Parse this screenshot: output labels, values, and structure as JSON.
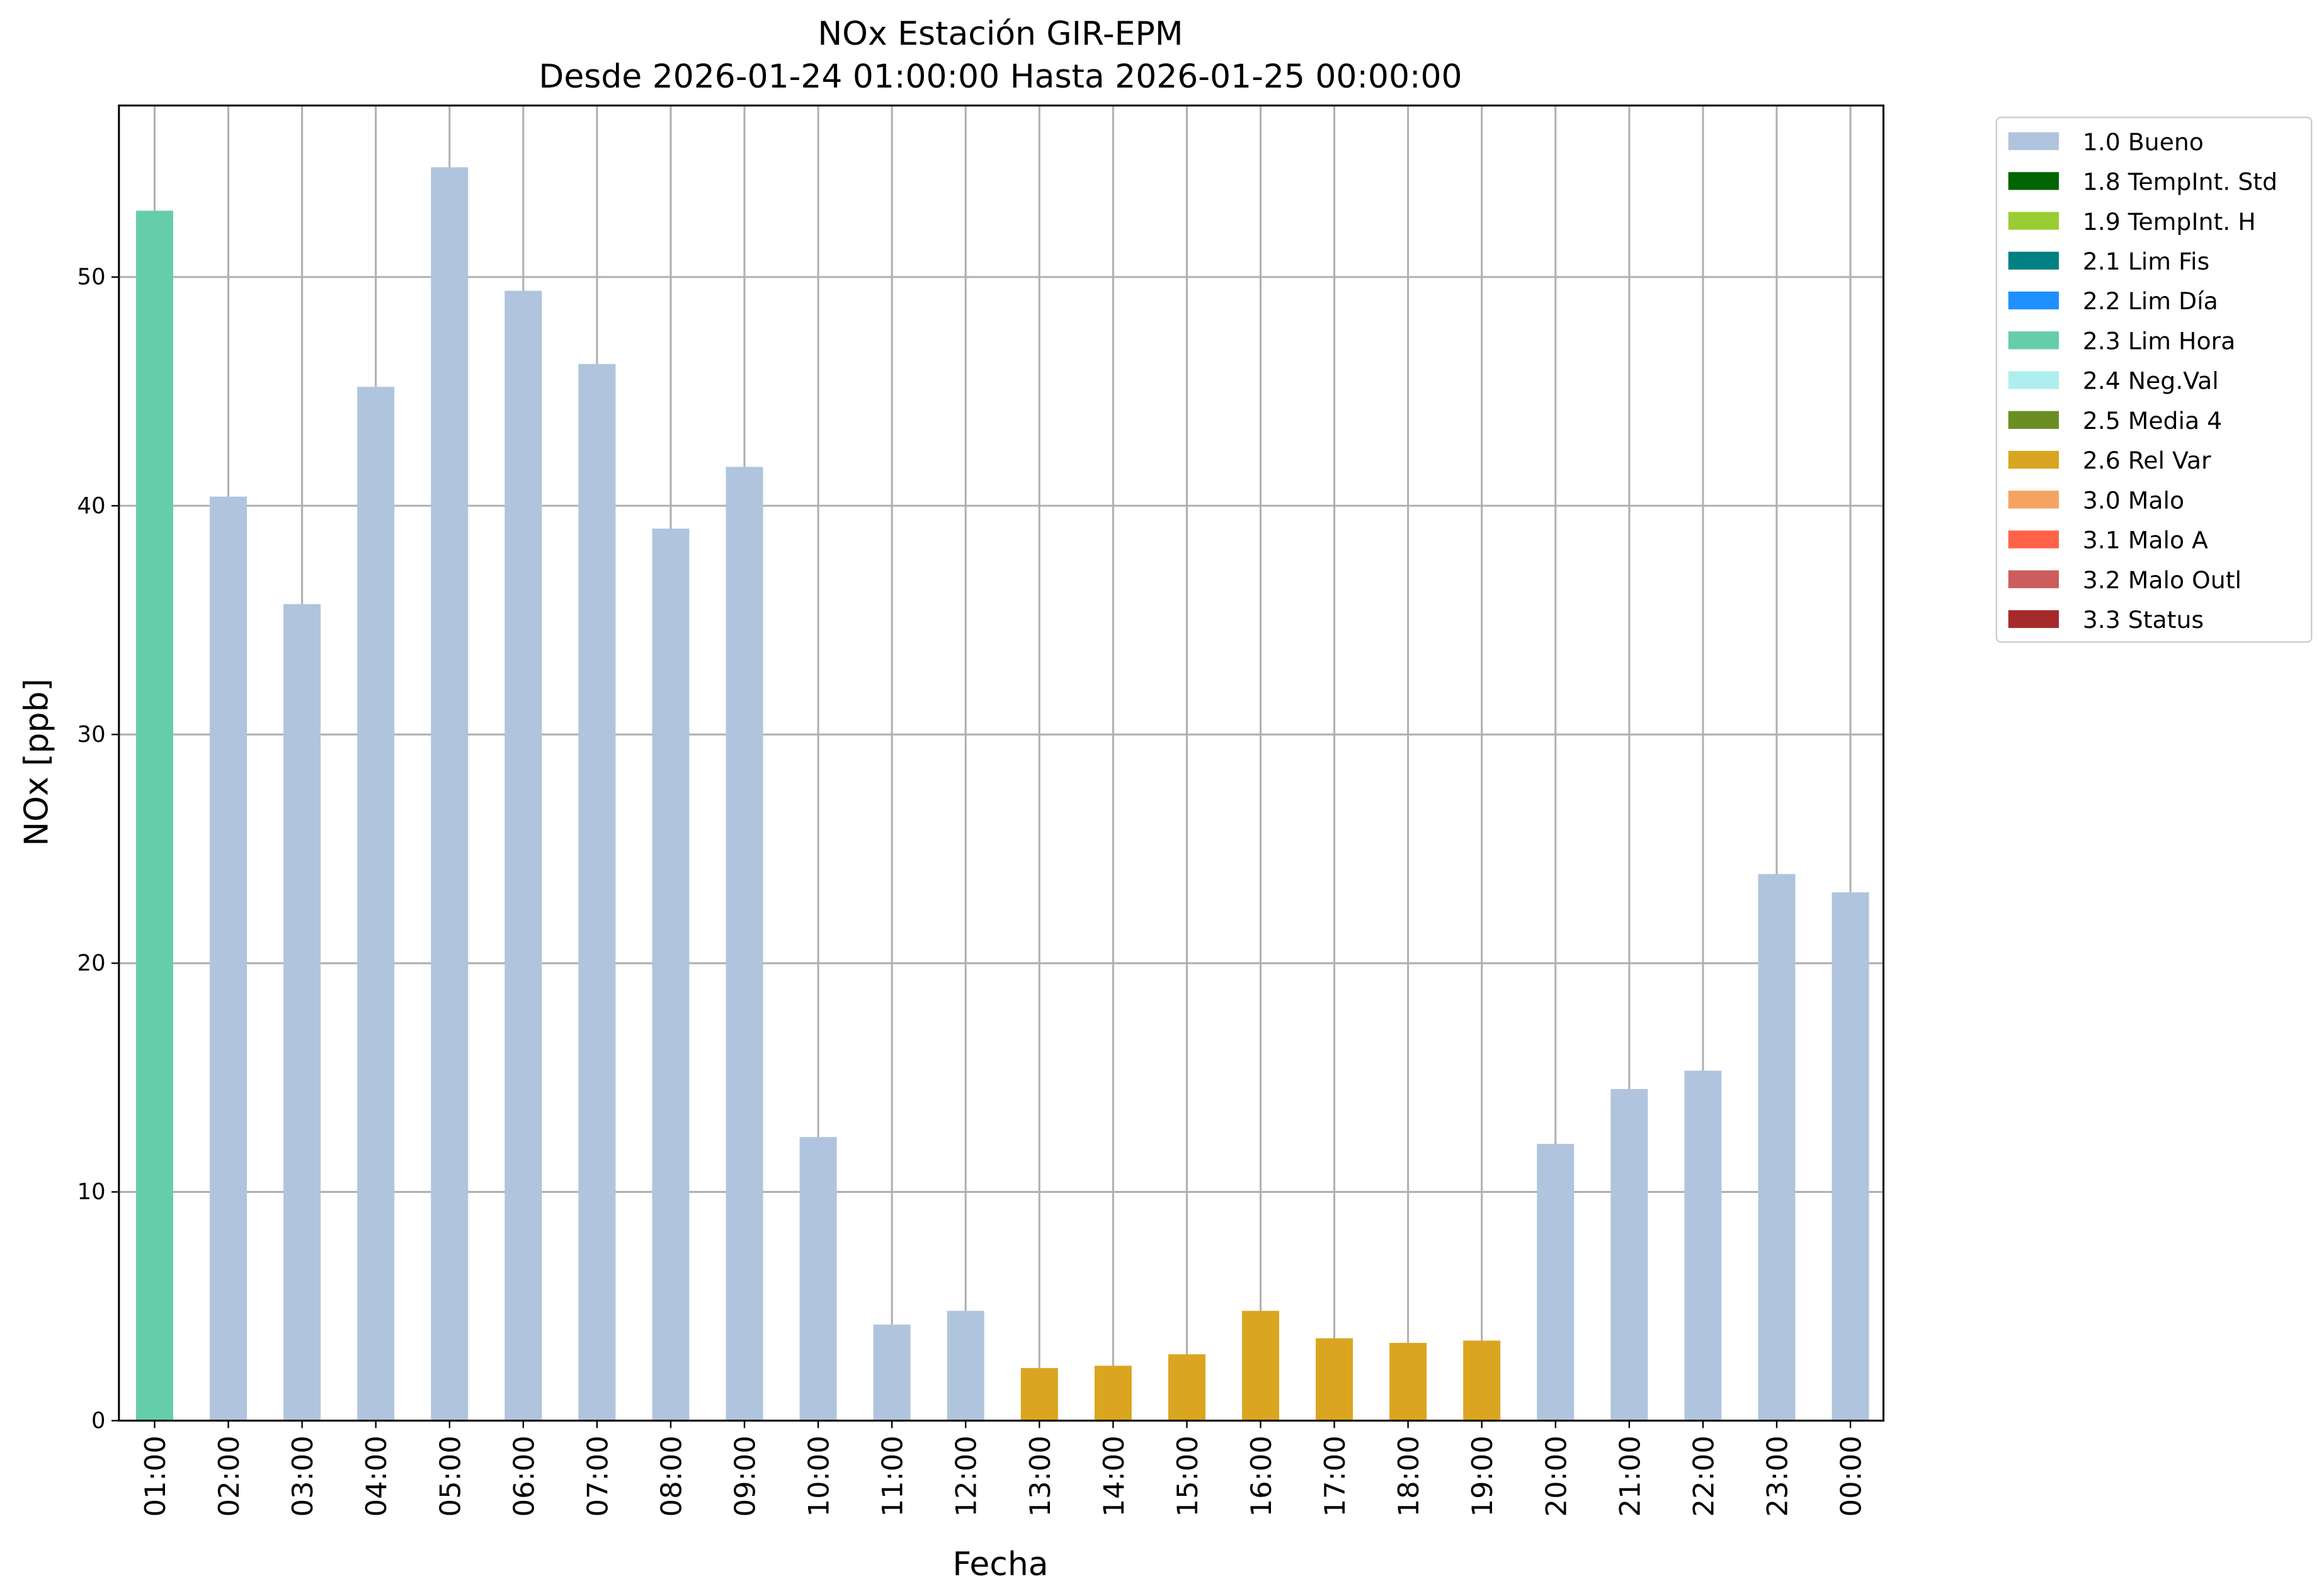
{
  "chart_data": {
    "type": "bar",
    "title": "NOx Estación GIR-EPM",
    "subtitle": "Desde 2026-01-24 01:00:00 Hasta 2026-01-25 00:00:00",
    "xlabel": "Fecha",
    "ylabel": "NOx [ppb]",
    "ylim": [
      0,
      57.5
    ],
    "yticks": [
      0,
      10,
      20,
      30,
      40,
      50
    ],
    "grid": true,
    "legend_position": "outside-right-top",
    "categories": [
      "01:00",
      "02:00",
      "03:00",
      "04:00",
      "05:00",
      "06:00",
      "07:00",
      "08:00",
      "09:00",
      "10:00",
      "11:00",
      "12:00",
      "13:00",
      "14:00",
      "15:00",
      "16:00",
      "17:00",
      "18:00",
      "19:00",
      "20:00",
      "21:00",
      "22:00",
      "23:00",
      "00:00"
    ],
    "values": [
      52.9,
      40.4,
      35.7,
      45.2,
      54.8,
      49.4,
      46.2,
      39.0,
      41.7,
      12.4,
      4.2,
      4.8,
      2.3,
      2.4,
      2.9,
      4.8,
      3.6,
      3.4,
      3.5,
      12.1,
      14.5,
      15.3,
      23.9,
      23.1
    ],
    "flags": [
      "2.3 Lim Hora",
      "1.0 Bueno",
      "1.0 Bueno",
      "1.0 Bueno",
      "1.0 Bueno",
      "1.0 Bueno",
      "1.0 Bueno",
      "1.0 Bueno",
      "1.0 Bueno",
      "1.0 Bueno",
      "1.0 Bueno",
      "1.0 Bueno",
      "2.6 Rel Var",
      "2.6 Rel Var",
      "2.6 Rel Var",
      "2.6 Rel Var",
      "2.6 Rel Var",
      "2.6 Rel Var",
      "2.6 Rel Var",
      "1.0 Bueno",
      "1.0 Bueno",
      "1.0 Bueno",
      "1.0 Bueno",
      "1.0 Bueno"
    ],
    "legend": [
      {
        "name": "1.0 Bueno",
        "color": "#b0c4de"
      },
      {
        "name": "1.8 TempInt. Std",
        "color": "#006400"
      },
      {
        "name": "1.9 TempInt. H",
        "color": "#9acd32"
      },
      {
        "name": "2.1 Lim Fis",
        "color": "#008080"
      },
      {
        "name": "2.2 Lim Día",
        "color": "#1e90ff"
      },
      {
        "name": "2.3 Lim Hora",
        "color": "#66cdaa"
      },
      {
        "name": "2.4 Neg.Val",
        "color": "#afeeee"
      },
      {
        "name": "2.5 Media 4",
        "color": "#6b8e23"
      },
      {
        "name": "2.6 Rel Var",
        "color": "#daa520"
      },
      {
        "name": "3.0 Malo",
        "color": "#f4a460"
      },
      {
        "name": "3.1 Malo A",
        "color": "#ff6347"
      },
      {
        "name": "3.2 Malo Outl",
        "color": "#cd5c5c"
      },
      {
        "name": "3.3 Status",
        "color": "#a52a2a"
      }
    ]
  }
}
